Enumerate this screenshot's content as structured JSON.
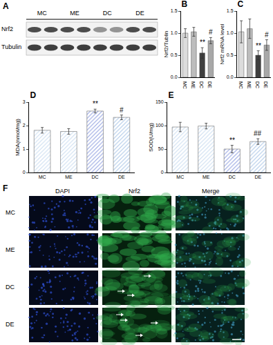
{
  "blot": {
    "label": "A",
    "groups": [
      "MC",
      "ME",
      "DC",
      "DE"
    ],
    "rows": [
      "Nrf2",
      "Tubulin"
    ]
  },
  "chart_data": [
    {
      "type": "bar",
      "title": "B",
      "y_label": "Nrf2/Tublin",
      "categories": [
        "MC",
        "ME",
        "DC",
        "DE"
      ],
      "values": [
        1.0,
        1.03,
        0.55,
        0.83
      ],
      "errors": [
        0.1,
        0.1,
        0.12,
        0.07
      ],
      "colors": [
        "#dcdcdc",
        "#bdbdbd",
        "#3f3f3f",
        "#a8a8a8"
      ],
      "ylim": [
        0,
        1.5
      ],
      "yticks": [
        {
          "value": 0,
          "label": "0.0"
        },
        {
          "value": 0.5,
          "label": "0.5"
        },
        {
          "value": 1,
          "label": "1.0"
        },
        {
          "value": 1.5,
          "label": "1.5"
        }
      ],
      "grid": false,
      "annotations": [
        {
          "category": "DC",
          "text": "**"
        },
        {
          "category": "DE",
          "text": "#"
        }
      ]
    },
    {
      "type": "bar",
      "title": "C",
      "y_label": "Nrf2 mRNA level",
      "categories": [
        "MC",
        "ME",
        "DC",
        "DE"
      ],
      "values": [
        1.03,
        1.1,
        0.5,
        0.73
      ],
      "errors": [
        0.25,
        0.22,
        0.1,
        0.12
      ],
      "colors": [
        "#dcdcdc",
        "#bdbdbd",
        "#3f3f3f",
        "#a8a8a8"
      ],
      "ylim": [
        0,
        1.5
      ],
      "yticks": [
        {
          "value": 0,
          "label": "0.0"
        },
        {
          "value": 0.5,
          "label": "0.5"
        },
        {
          "value": 1,
          "label": "1.0"
        },
        {
          "value": 1.5,
          "label": "1.5"
        }
      ],
      "grid": false,
      "annotations": [
        {
          "category": "DC",
          "text": "**"
        },
        {
          "category": "DE",
          "text": "#"
        }
      ]
    },
    {
      "type": "bar",
      "title": "D",
      "y_label": "MDA(nmol/mg)",
      "categories": [
        "MC",
        "ME",
        "DC",
        "DE"
      ],
      "values": [
        1.8,
        1.75,
        2.62,
        2.35
      ],
      "errors": [
        0.12,
        0.12,
        0.08,
        0.1
      ],
      "colors": [
        "#c9dcef",
        "#c9dcef",
        "#8f9fe0",
        "#a9c5e6"
      ],
      "ylim": [
        0,
        3
      ],
      "yticks": [
        0,
        1,
        2,
        3
      ],
      "grid": false,
      "annotations": [
        {
          "category": "DC",
          "text": "**"
        },
        {
          "category": "DE",
          "text": "#"
        }
      ]
    },
    {
      "type": "bar",
      "title": "E",
      "y_label": "SOD(U/mg)",
      "categories": [
        "MC",
        "ME",
        "DC",
        "DE"
      ],
      "values": [
        97,
        99,
        50,
        66
      ],
      "errors": [
        10,
        6,
        8,
        6
      ],
      "colors": [
        "#c9dcef",
        "#c9dcef",
        "#8f9fe0",
        "#a9c5e6"
      ],
      "ylim": [
        0,
        150
      ],
      "yticks": [
        0,
        50,
        100,
        150
      ],
      "grid": false,
      "annotations": [
        {
          "category": "DC",
          "text": "**"
        },
        {
          "category": "DE",
          "text": "##"
        }
      ]
    }
  ],
  "micrographs": {
    "label": "F",
    "columns": [
      "DAPI",
      "Nrf2",
      "Merge"
    ],
    "rows": [
      "MC",
      "ME",
      "DC",
      "DE"
    ]
  }
}
